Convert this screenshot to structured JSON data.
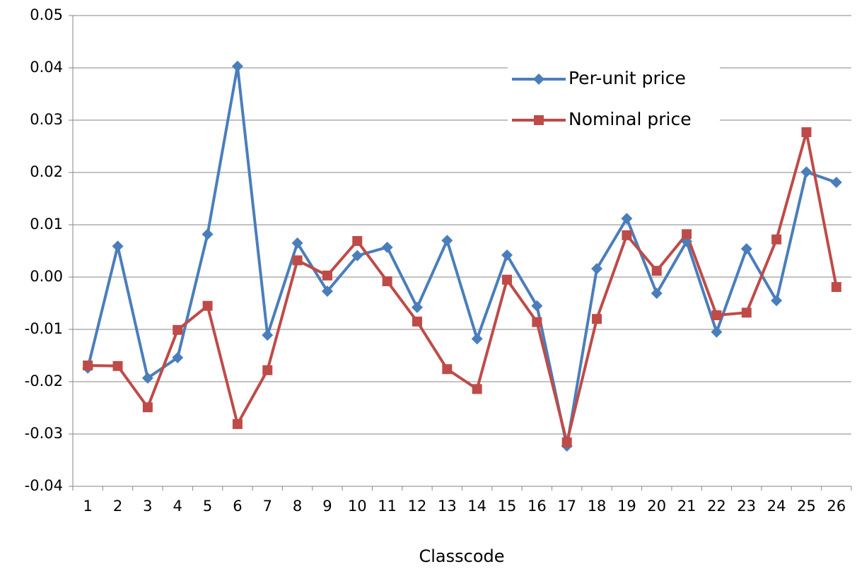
{
  "chart_data": {
    "type": "line",
    "x_label": "Classcode",
    "categories": [
      "1",
      "2",
      "3",
      "4",
      "5",
      "6",
      "7",
      "8",
      "9",
      "10",
      "11",
      "12",
      "13",
      "14",
      "15",
      "16",
      "17",
      "18",
      "19",
      "20",
      "21",
      "22",
      "23",
      "24",
      "25",
      "26"
    ],
    "series": [
      {
        "name": "Per-unit price",
        "color": "#4a7ebb",
        "marker": "diamond",
        "values": [
          -0.0174,
          0.0059,
          -0.0193,
          -0.0154,
          0.0082,
          0.0403,
          -0.0111,
          0.0065,
          -0.0027,
          0.0041,
          0.0057,
          -0.0058,
          0.007,
          -0.0118,
          0.0042,
          -0.0055,
          -0.0323,
          0.0016,
          0.0112,
          -0.0031,
          0.0068,
          -0.0105,
          0.0054,
          -0.0045,
          0.0201,
          0.0181
        ]
      },
      {
        "name": "Nominal price",
        "color": "#be4b48",
        "marker": "square",
        "values": [
          -0.0169,
          -0.017,
          -0.0249,
          -0.0101,
          -0.0055,
          -0.0281,
          -0.0178,
          0.0032,
          0.0003,
          0.0069,
          -0.0008,
          -0.0085,
          -0.0176,
          -0.0214,
          -0.0005,
          -0.0086,
          -0.0316,
          -0.008,
          0.008,
          0.0012,
          0.0082,
          -0.0073,
          -0.0068,
          0.0072,
          0.0277,
          -0.0019
        ]
      }
    ],
    "ylim": [
      -0.04,
      0.05
    ],
    "yticks": [
      -0.04,
      -0.03,
      -0.02,
      -0.01,
      {
        "value": 0,
        "label": "0.00"
      },
      0.01,
      0.02,
      0.03,
      0.04,
      0.05
    ],
    "grid": true,
    "legend": "upper right"
  }
}
